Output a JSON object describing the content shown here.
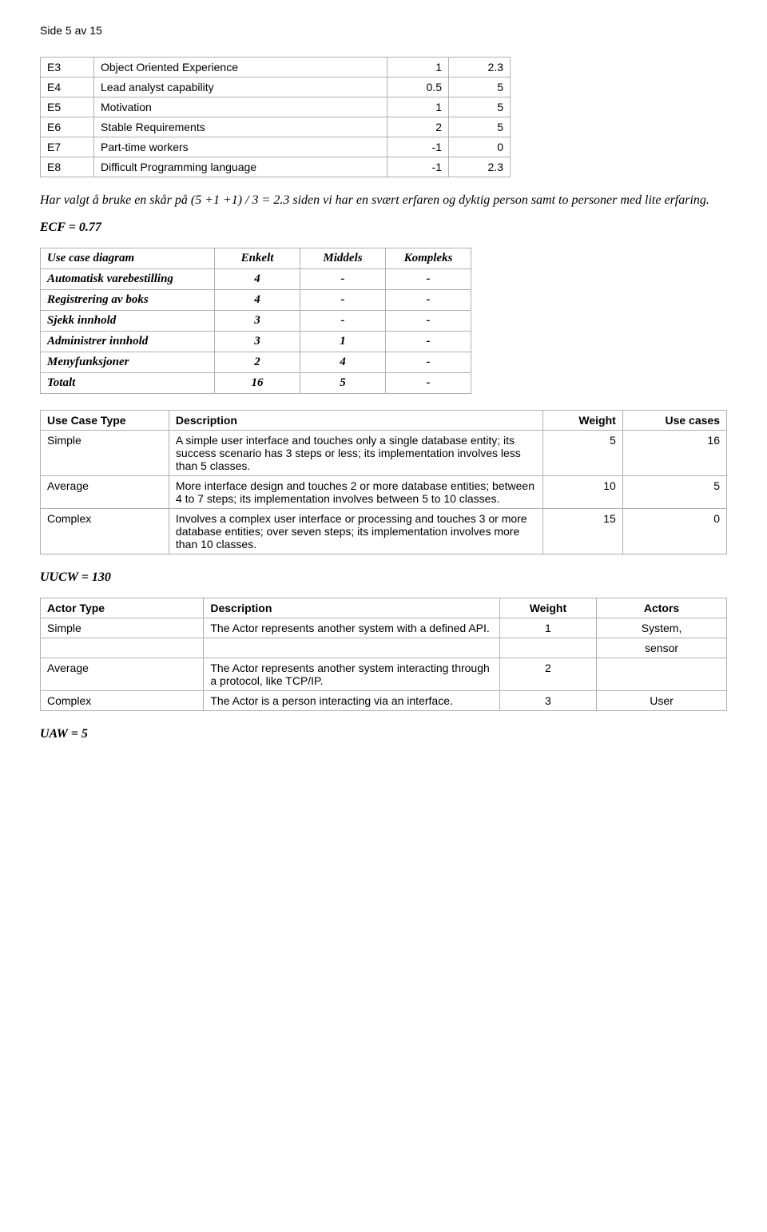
{
  "page_header": "Side 5 av 15",
  "table1": {
    "rows": [
      [
        "E3",
        "Object Oriented Experience",
        "1",
        "2.3"
      ],
      [
        "E4",
        "Lead analyst capability",
        "0.5",
        "5"
      ],
      [
        "E5",
        "Motivation",
        "1",
        "5"
      ],
      [
        "E6",
        "Stable Requirements",
        "2",
        "5"
      ],
      [
        "E7",
        "Part-time workers",
        "-1",
        "0"
      ],
      [
        "E8",
        "Difficult Programming language",
        "-1",
        "2.3"
      ]
    ]
  },
  "para1": "Har valgt å bruke en skår på (5 +1 +1) / 3 = 2.3 siden vi har en svært erfaren og dyktig person samt to personer med lite erfaring.",
  "ecf": "ECF = 0.77",
  "table2": {
    "headers": [
      "Use case diagram",
      "Enkelt",
      "Middels",
      "Kompleks"
    ],
    "rows": [
      [
        "Automatisk varebestilling",
        "4",
        "-",
        "-"
      ],
      [
        "Registrering av boks",
        "4",
        "-",
        "-"
      ],
      [
        "Sjekk innhold",
        "3",
        "-",
        "-"
      ],
      [
        "Administrer innhold",
        "3",
        "1",
        "-"
      ],
      [
        "Menyfunksjoner",
        "2",
        "4",
        "-"
      ],
      [
        "Totalt",
        "16",
        "5",
        "-"
      ]
    ]
  },
  "table3": {
    "headers": [
      "Use Case Type",
      "Description",
      "Weight",
      "Use cases"
    ],
    "rows": [
      [
        "Simple",
        "A simple user interface and touches only a single database entity; its success scenario has 3 steps or less; its implementation involves less than 5 classes.",
        "5",
        "16"
      ],
      [
        "Average",
        "More interface design and touches 2 or more database entities; between 4 to 7 steps; its implementation involves between 5 to 10 classes.",
        "10",
        "5"
      ],
      [
        "Complex",
        "Involves a complex user interface or processing and touches 3 or more database entities; over seven steps; its implementation involves more than 10 classes.",
        "15",
        "0"
      ]
    ]
  },
  "uucw": "UUCW = 130",
  "table4": {
    "headers": [
      "Actor Type",
      "Description",
      "Weight",
      "Actors"
    ],
    "rows": [
      [
        "Simple",
        "The Actor represents another system with a defined API.",
        "1",
        "System,"
      ],
      [
        "",
        "",
        "",
        "sensor"
      ],
      [
        "Average",
        "The Actor represents another system interacting through a protocol, like TCP/IP.",
        "2",
        ""
      ],
      [
        "Complex",
        "The Actor is a person interacting via an interface.",
        "3",
        "User"
      ]
    ]
  },
  "uaw": "UAW = 5"
}
